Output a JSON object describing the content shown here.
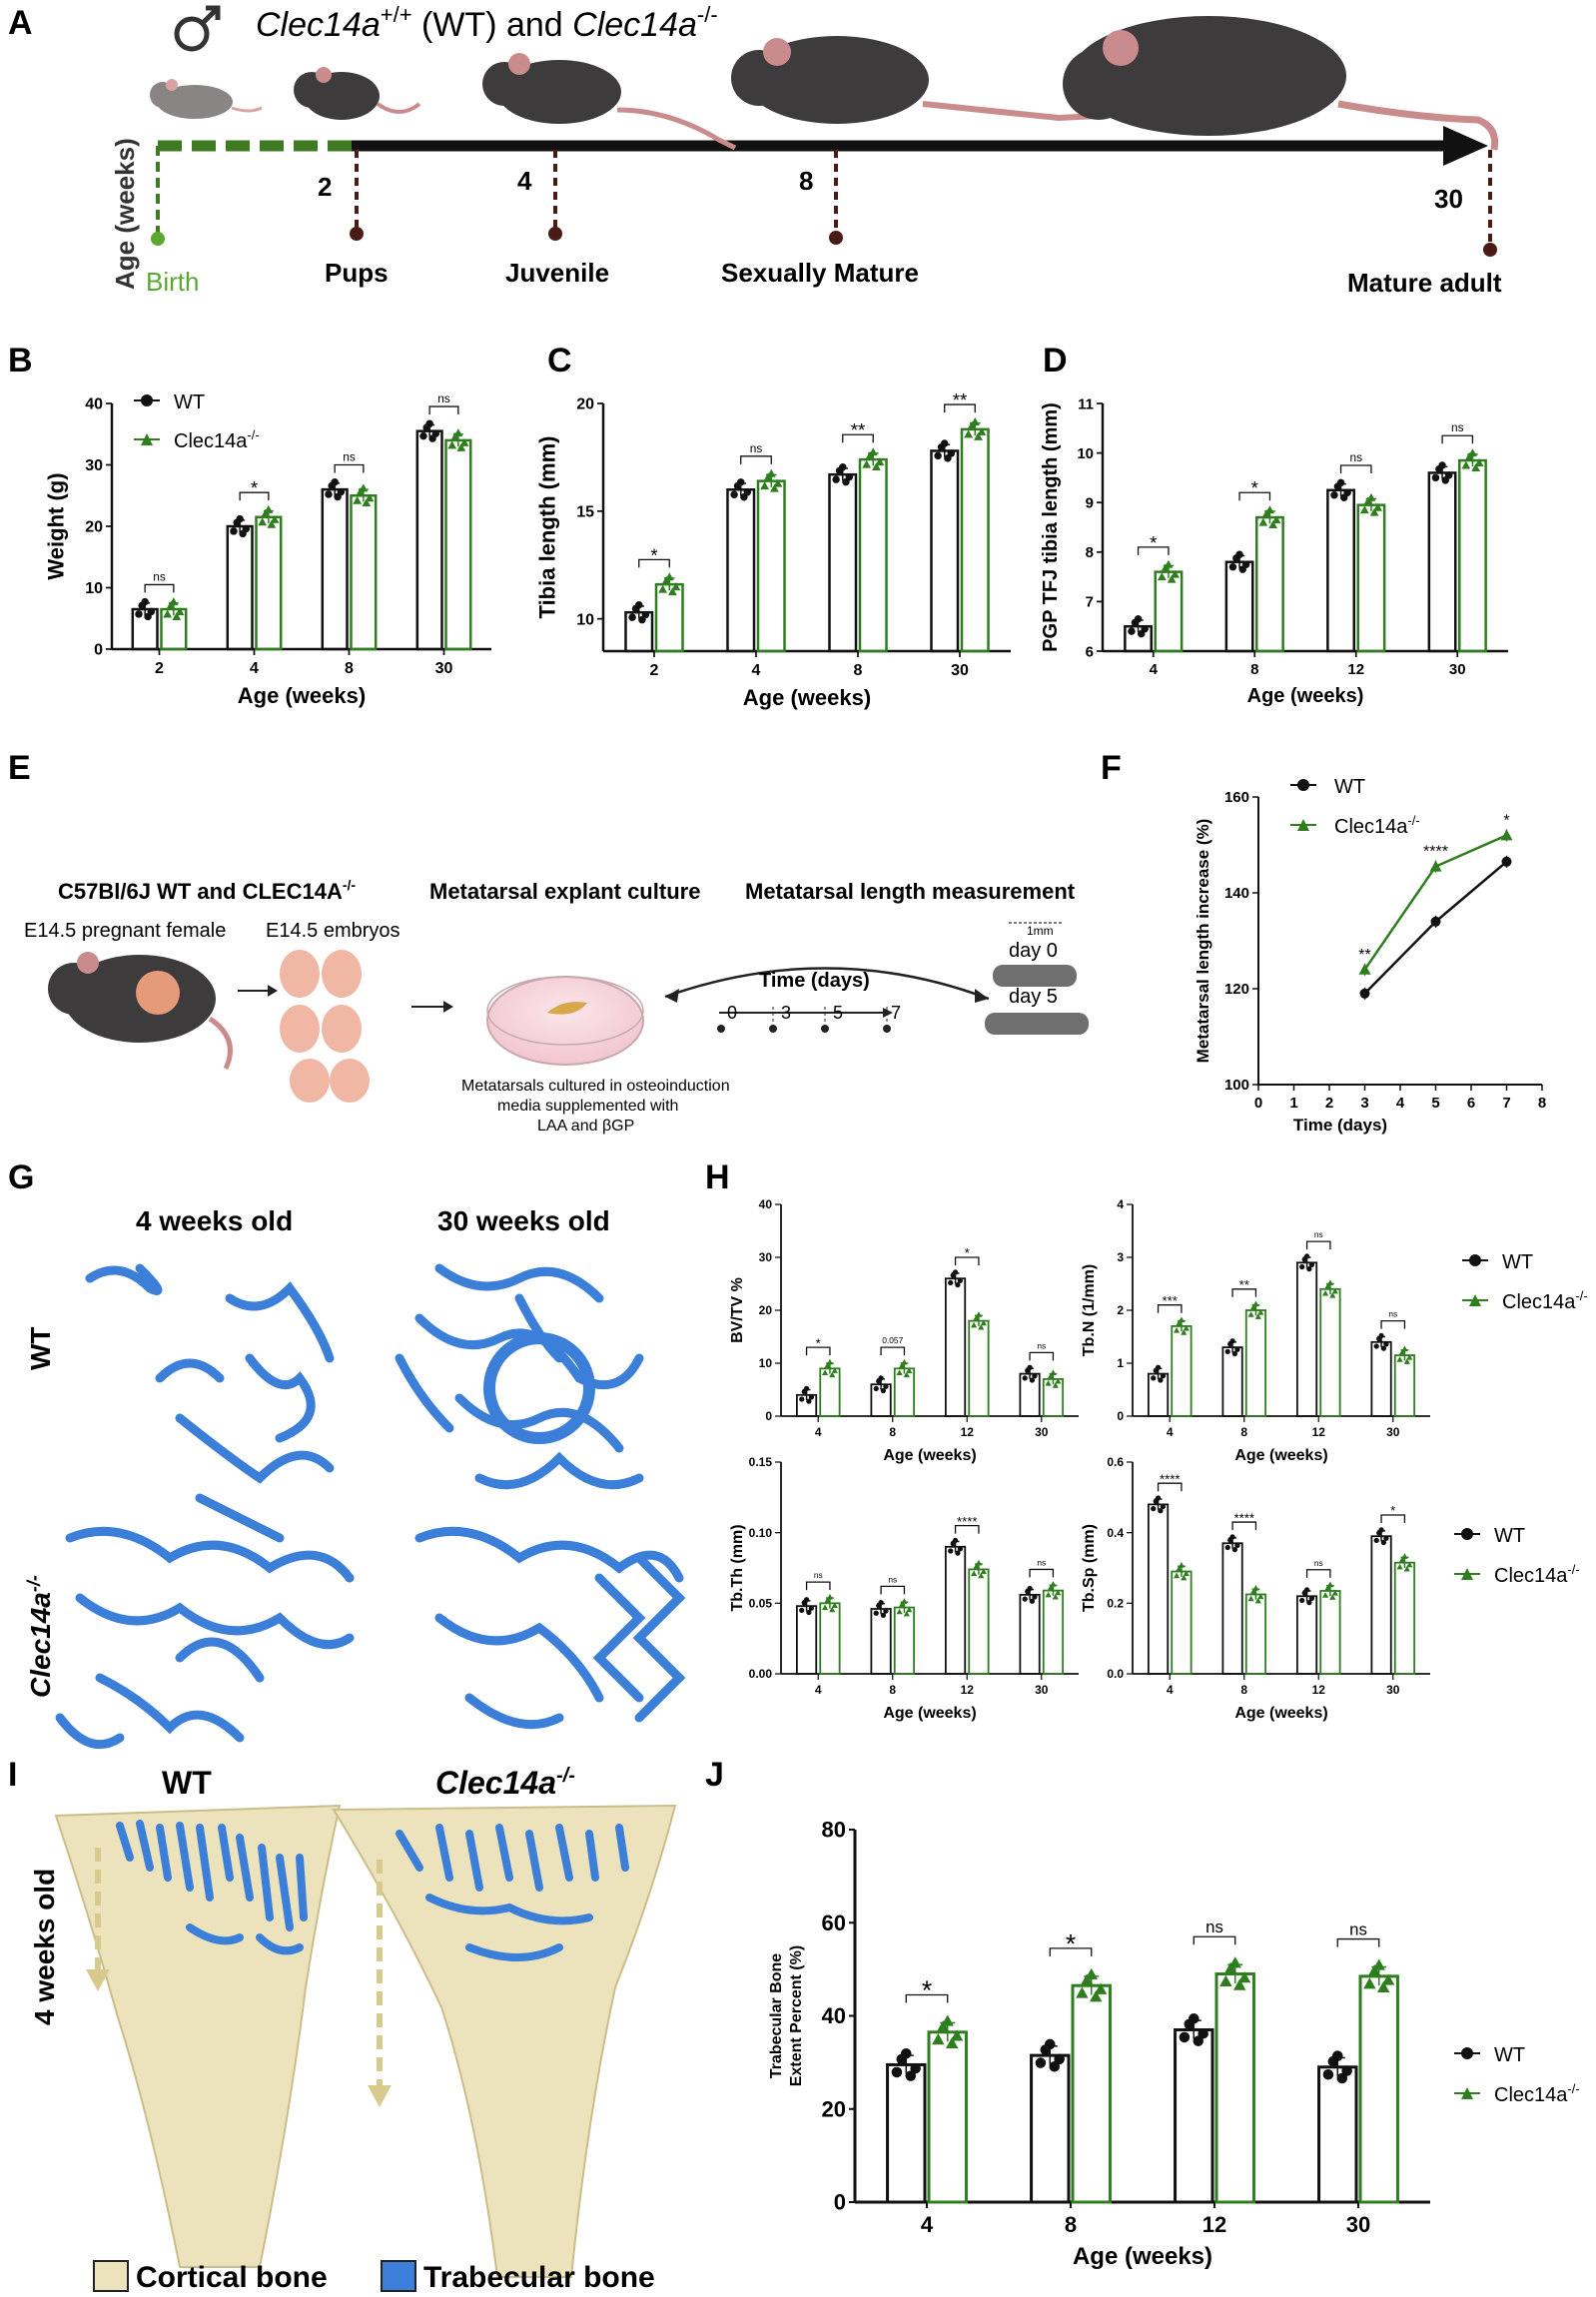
{
  "colors": {
    "wt": "#111111",
    "ko": "#2e7d1e",
    "birth": "#5aa832",
    "bone_blue": "#3b7fd9",
    "cortical": "#ece3bd",
    "timeline_dot": "#4a1a14"
  },
  "panel_labels": [
    "A",
    "B",
    "C",
    "D",
    "E",
    "F",
    "G",
    "H",
    "I",
    "J"
  ],
  "panel_a": {
    "title_prefix": "Clec14a",
    "title_wt_sup": "+/+",
    "title_mid": " (WT) and ",
    "title_ko": "Clec14a",
    "title_ko_sup": "-/-",
    "axis_label": "Age (weeks)",
    "stages": [
      {
        "week": "",
        "label": "Birth"
      },
      {
        "week": "2",
        "label": "Pups"
      },
      {
        "week": "4",
        "label": "Juvenile"
      },
      {
        "week": "8",
        "label": "Sexually Mature"
      },
      {
        "week": "30",
        "label": "Mature adult"
      }
    ]
  },
  "legend": {
    "wt": "WT",
    "ko": "Clec14a",
    "ko_sup": "-/-"
  },
  "panel_e": {
    "strain_title": "C57Bl/6J WT and CLEC14A",
    "strain_sup": "-/-",
    "female": "E14.5 pregnant female",
    "embryos": "E14.5 embryos",
    "culture_title": "Metatarsal explant culture",
    "measure_title": "Metatarsal length measurement",
    "time_label": "Time (days)",
    "time_points": [
      "0",
      "3",
      "5",
      "7"
    ],
    "culture_note": [
      "Metatarsals cultured in osteoinduction",
      "media supplemented with",
      "LAA and βGP"
    ],
    "scale": "1mm",
    "day0": "day 0",
    "day5": "day 5"
  },
  "panel_g": {
    "col1": "4 weeks old",
    "col2": "30 weeks old",
    "row1": "WT",
    "row2": "Clec14a",
    "row2_sup": "-/-"
  },
  "panel_i": {
    "col1": "WT",
    "col2": "Clec14a",
    "col2_sup": "-/-",
    "side": "4 weeks old",
    "cortical": "Cortical bone",
    "trabecular": "Trabecular bone"
  },
  "chart_data": [
    {
      "id": "B",
      "type": "bar",
      "title": "",
      "xlabel": "Age (weeks)",
      "ylabel": "Weight (g)",
      "ylim": [
        0,
        40
      ],
      "yticks": [
        0,
        10,
        20,
        30,
        40
      ],
      "categories": [
        "2",
        "4",
        "8",
        "30"
      ],
      "series": [
        {
          "name": "WT",
          "values": [
            6.5,
            20,
            26,
            35.5
          ]
        },
        {
          "name": "Clec14a-/-",
          "values": [
            6.5,
            21.5,
            25,
            34
          ]
        }
      ],
      "sig": [
        "ns",
        "*",
        "ns",
        "ns"
      ]
    },
    {
      "id": "C",
      "type": "bar",
      "title": "",
      "xlabel": "Age (weeks)",
      "ylabel": "Tibia length (mm)",
      "ylim": [
        8.5,
        20
      ],
      "yticks": [
        10,
        15,
        20
      ],
      "categories": [
        "2",
        "4",
        "8",
        "30"
      ],
      "series": [
        {
          "name": "WT",
          "values": [
            10.3,
            16,
            16.7,
            17.8
          ]
        },
        {
          "name": "Clec14a-/-",
          "values": [
            11.6,
            16.4,
            17.4,
            18.8
          ]
        }
      ],
      "sig": [
        "*",
        "ns",
        "**",
        "**"
      ]
    },
    {
      "id": "D",
      "type": "bar",
      "title": "",
      "xlabel": "Age (weeks)",
      "ylabel": "PGP TFJ tibia length (mm)",
      "ylim": [
        6,
        11
      ],
      "yticks": [
        6,
        7,
        8,
        9,
        10,
        11
      ],
      "categories": [
        "4",
        "8",
        "12",
        "30"
      ],
      "series": [
        {
          "name": "WT",
          "values": [
            6.5,
            7.8,
            9.25,
            9.6
          ]
        },
        {
          "name": "Clec14a-/-",
          "values": [
            7.6,
            8.7,
            8.95,
            9.85
          ]
        }
      ],
      "sig": [
        "*",
        "*",
        "ns",
        "ns"
      ]
    },
    {
      "id": "F",
      "type": "line",
      "title": "",
      "xlabel": "Time (days)",
      "ylabel": "Metatarsal length increase (%)",
      "xlim": [
        0,
        8
      ],
      "ylim": [
        100,
        160
      ],
      "xticks": [
        0,
        1,
        2,
        3,
        4,
        5,
        6,
        7,
        8
      ],
      "yticks": [
        100,
        120,
        140,
        160
      ],
      "x": [
        3,
        5,
        7
      ],
      "series": [
        {
          "name": "WT",
          "values": [
            119,
            134,
            146.5
          ]
        },
        {
          "name": "Clec14a-/-",
          "values": [
            124,
            145.5,
            152
          ]
        }
      ],
      "sig": [
        "**",
        "****",
        "*"
      ]
    },
    {
      "id": "H1",
      "type": "bar",
      "title": "",
      "xlabel": "Age (weeks)",
      "ylabel": "BV/TV %",
      "ylim": [
        0,
        40
      ],
      "yticks": [
        0,
        10,
        20,
        30,
        40
      ],
      "categories": [
        "4",
        "8",
        "12",
        "30"
      ],
      "series": [
        {
          "name": "WT",
          "values": [
            4,
            6,
            26,
            8
          ]
        },
        {
          "name": "Clec14a-/-",
          "values": [
            9,
            9,
            18,
            7
          ]
        }
      ],
      "sig": [
        "*",
        "0.057",
        "*",
        "ns"
      ]
    },
    {
      "id": "H2",
      "type": "bar",
      "title": "",
      "xlabel": "Age (weeks)",
      "ylabel": "Tb.N (1/mm)",
      "ylim": [
        0,
        4
      ],
      "yticks": [
        0,
        1,
        2,
        3,
        4
      ],
      "categories": [
        "4",
        "8",
        "12",
        "30"
      ],
      "series": [
        {
          "name": "WT",
          "values": [
            0.8,
            1.3,
            2.9,
            1.4
          ]
        },
        {
          "name": "Clec14a-/-",
          "values": [
            1.7,
            2.0,
            2.4,
            1.15
          ]
        }
      ],
      "sig": [
        "***",
        "**",
        "ns",
        "ns"
      ]
    },
    {
      "id": "H3",
      "type": "bar",
      "title": "",
      "xlabel": "Age (weeks)",
      "ylabel": "Tb.Th (mm)",
      "ylim": [
        0,
        0.15
      ],
      "yticks": [
        0.0,
        0.05,
        0.1,
        0.15
      ],
      "categories": [
        "4",
        "8",
        "12",
        "30"
      ],
      "series": [
        {
          "name": "WT",
          "values": [
            0.048,
            0.046,
            0.09,
            0.056
          ]
        },
        {
          "name": "Clec14a-/-",
          "values": [
            0.05,
            0.047,
            0.074,
            0.059
          ]
        }
      ],
      "sig": [
        "ns",
        "ns",
        "****",
        "ns"
      ]
    },
    {
      "id": "H4",
      "type": "bar",
      "title": "",
      "xlabel": "Age (weeks)",
      "ylabel": "Tb.Sp (mm)",
      "ylim": [
        0,
        0.6
      ],
      "yticks": [
        0.0,
        0.2,
        0.4,
        0.6
      ],
      "categories": [
        "4",
        "8",
        "12",
        "30"
      ],
      "series": [
        {
          "name": "WT",
          "values": [
            0.48,
            0.37,
            0.22,
            0.39
          ]
        },
        {
          "name": "Clec14a-/-",
          "values": [
            0.29,
            0.225,
            0.235,
            0.315
          ]
        }
      ],
      "sig": [
        "****",
        "****",
        "ns",
        "*"
      ]
    },
    {
      "id": "J",
      "type": "bar",
      "title": "",
      "xlabel": "Age (weeks)",
      "ylabel": "Trabecular Bone Extent Percent (%)",
      "ylim": [
        0,
        80
      ],
      "yticks": [
        0,
        20,
        40,
        60,
        80
      ],
      "categories": [
        "4",
        "8",
        "12",
        "30"
      ],
      "series": [
        {
          "name": "WT",
          "values": [
            29.5,
            31.5,
            37,
            29
          ]
        },
        {
          "name": "Clec14a-/-",
          "values": [
            36.5,
            46.5,
            49,
            48.5
          ]
        }
      ],
      "sig": [
        "*",
        "*",
        "ns",
        "ns"
      ]
    }
  ]
}
